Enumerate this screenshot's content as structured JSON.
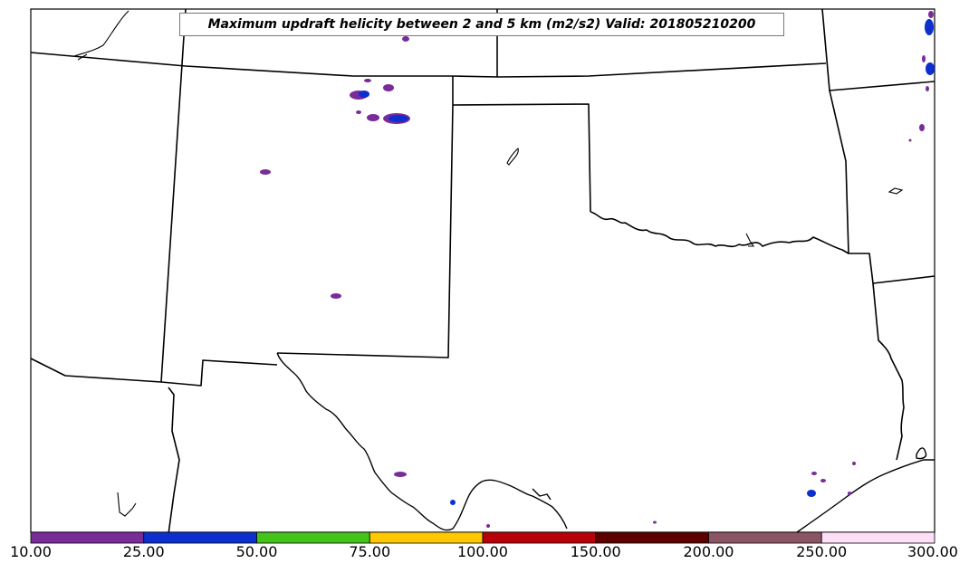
{
  "title": "Maximum updraft helicity between 2 and 5 km (m2/s2) Valid: 201805210200",
  "colorbar": {
    "labels": [
      "10.00",
      "25.00",
      "50.00",
      "75.00",
      "100.00",
      "150.00",
      "200.00",
      "250.00",
      "300.00"
    ],
    "colors": [
      "#7a2b9a",
      "#0d2fcf",
      "#44c31a",
      "#ffc800",
      "#b80008",
      "#5e0000",
      "#8b5565",
      "#fde0f8"
    ]
  },
  "legend_placement": "bottom"
}
